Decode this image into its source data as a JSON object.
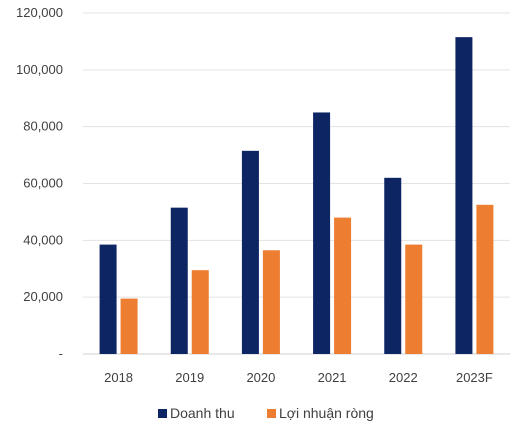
{
  "chart_data": {
    "type": "bar",
    "categories": [
      "2018",
      "2019",
      "2020",
      "2021",
      "2022",
      "2023F"
    ],
    "series": [
      {
        "name": "Doanh thu",
        "color": "#0d2563",
        "values": [
          38500,
          51500,
          71500,
          85000,
          62000,
          111500
        ]
      },
      {
        "name": "Lợi nhuận ròng",
        "color": "#ed7d31",
        "values": [
          19500,
          29500,
          36500,
          48000,
          38500,
          52500
        ]
      }
    ],
    "ylim": [
      0,
      120000
    ],
    "yticks": [
      0,
      20000,
      40000,
      60000,
      80000,
      100000,
      120000
    ],
    "ytick_labels": [
      "-",
      "20,000",
      "40,000",
      "60,000",
      "80,000",
      "100,000",
      "120,000"
    ],
    "grid": true,
    "legend_position": "bottom",
    "title": "",
    "xlabel": "",
    "ylabel": ""
  }
}
